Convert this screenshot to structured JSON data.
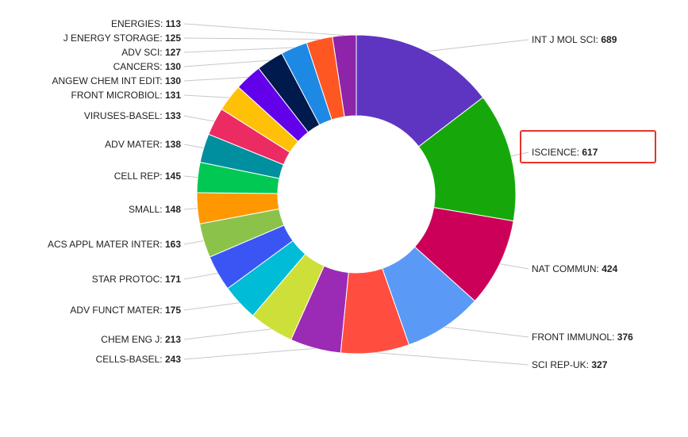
{
  "chart_data": {
    "type": "pie",
    "categories": [
      "INT J MOL SCI",
      "ISCIENCE",
      "NAT COMMUN",
      "FRONT IMMUNOL",
      "SCI REP-UK",
      "CELLS-BASEL",
      "CHEM ENG J",
      "ADV FUNCT MATER",
      "STAR PROTOC",
      "ACS APPL MATER INTER",
      "SMALL",
      "CELL REP",
      "ADV MATER",
      "VIRUSES-BASEL",
      "FRONT MICROBIOL",
      "ANGEW CHEM INT EDIT",
      "CANCERS",
      "ADV SCI",
      "J ENERGY STORAGE",
      "ENERGIES"
    ],
    "values": [
      689,
      617,
      424,
      376,
      327,
      243,
      213,
      175,
      171,
      163,
      148,
      145,
      138,
      133,
      131,
      130,
      130,
      127,
      125,
      113
    ],
    "colors": [
      "#5e35c1",
      "#16a80b",
      "#cc0058",
      "#5b99f6",
      "#ff4d40",
      "#9b2bb5",
      "#cde03a",
      "#00bcd6",
      "#3b55f5",
      "#8bc34a",
      "#ff9800",
      "#00c853",
      "#008f9e",
      "#ec2b63",
      "#ffc107",
      "#6200ea",
      "#001a4d",
      "#1e88e5",
      "#ff5722",
      "#8e24aa"
    ],
    "labels": [
      {
        "name": "INT J MOL SCI",
        "value": "689"
      },
      {
        "name": "ISCIENCE",
        "value": "617"
      },
      {
        "name": "NAT COMMUN",
        "value": "424"
      },
      {
        "name": "FRONT IMMUNOL",
        "value": "376"
      },
      {
        "name": "SCI REP-UK",
        "value": "327"
      },
      {
        "name": "CELLS-BASEL",
        "value": "243"
      },
      {
        "name": "CHEM ENG J",
        "value": "213"
      },
      {
        "name": "ADV FUNCT MATER",
        "value": "175"
      },
      {
        "name": "STAR PROTOC",
        "value": "171"
      },
      {
        "name": "ACS APPL MATER INTER",
        "value": "163"
      },
      {
        "name": "SMALL",
        "value": "148"
      },
      {
        "name": "CELL REP",
        "value": "145"
      },
      {
        "name": "ADV MATER",
        "value": "138"
      },
      {
        "name": "VIRUSES-BASEL",
        "value": "133"
      },
      {
        "name": "FRONT MICROBIOL",
        "value": "131"
      },
      {
        "name": "ANGEW CHEM INT EDIT",
        "value": "130"
      },
      {
        "name": "CANCERS",
        "value": "130"
      },
      {
        "name": "ADV SCI",
        "value": "127"
      },
      {
        "name": "J ENERGY STORAGE",
        "value": "125"
      },
      {
        "name": "ENERGIES",
        "value": "113"
      }
    ],
    "separator": ": ",
    "donut": true,
    "highlighted": "ISCIENCE",
    "highlight_color": "#e8322b",
    "leader_color": "#c8c8c8"
  }
}
